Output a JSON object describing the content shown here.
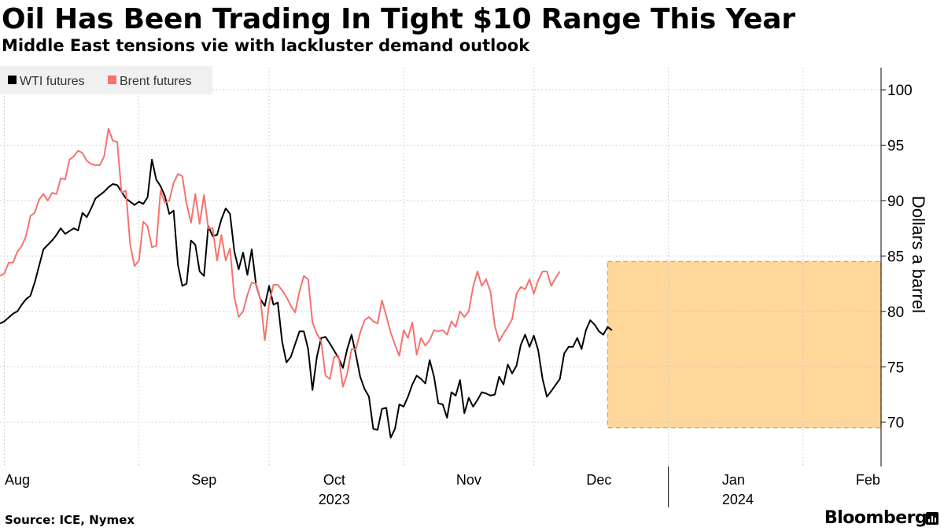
{
  "header": {
    "title": "Oil Has Been Trading In Tight $10 Range This Year",
    "subtitle": "Middle East tensions vie with lackluster demand outlook"
  },
  "footer": {
    "source": "Source: ICE, Nymex",
    "brand": "Bloomberg"
  },
  "chart_data": {
    "type": "line",
    "title": "Oil Has Been Trading In Tight $10 Range This Year",
    "subtitle": "Middle East tensions vie with lackluster demand outlook",
    "ylabel": "Dollars a barrel",
    "xlabel": "",
    "ylim": [
      66,
      102
    ],
    "yticks": [
      70,
      75,
      80,
      85,
      90,
      95,
      100
    ],
    "xlim_days": [
      0,
      203
    ],
    "x_unit": "days since 2023-07-31",
    "x_month_ticks": [
      {
        "label": "Aug",
        "day": 1
      },
      {
        "label": "Sep",
        "day": 32
      },
      {
        "label": "Oct",
        "day": 62
      },
      {
        "label": "Nov",
        "day": 93
      },
      {
        "label": "Dec",
        "day": 123
      },
      {
        "label": "Jan",
        "day": 154
      },
      {
        "label": "Feb",
        "day": 185
      }
    ],
    "x_month_bounds": [
      1,
      32,
      62,
      93,
      123,
      154,
      185
    ],
    "x_year_labels": [
      {
        "label": "2023",
        "day": 77
      },
      {
        "label": "2024",
        "day": 170
      }
    ],
    "x_year_boundary_day": 154,
    "highlight": {
      "x_start_day": 140,
      "x_end_day": 203,
      "y_min": 69.5,
      "y_max": 84.5,
      "color": "#ffd79b",
      "border": "#f5a623"
    },
    "legend_position": "top-left",
    "grid": true,
    "series": [
      {
        "name": "WTI futures",
        "color": "#000000",
        "points": [
          [
            0,
            78.9
          ],
          [
            1,
            79.1
          ],
          [
            3,
            79.8
          ],
          [
            4,
            80.0
          ],
          [
            5,
            80.6
          ],
          [
            6,
            81.1
          ],
          [
            7,
            81.4
          ],
          [
            8,
            82.6
          ],
          [
            10,
            85.6
          ],
          [
            11,
            86.0
          ],
          [
            12,
            86.4
          ],
          [
            13,
            86.9
          ],
          [
            14,
            87.5
          ],
          [
            15,
            87.0
          ],
          [
            17,
            87.5
          ],
          [
            18,
            87.3
          ],
          [
            19,
            88.9
          ],
          [
            20,
            88.5
          ],
          [
            21,
            89.3
          ],
          [
            22,
            90.2
          ],
          [
            24,
            90.8
          ],
          [
            25,
            91.2
          ],
          [
            26,
            91.5
          ],
          [
            27,
            91.4
          ],
          [
            28,
            90.8
          ],
          [
            29,
            90.2
          ],
          [
            31,
            89.6
          ],
          [
            32,
            89.9
          ],
          [
            33,
            89.7
          ],
          [
            34,
            90.3
          ],
          [
            35,
            93.7
          ],
          [
            36,
            91.9
          ],
          [
            37,
            91.3
          ],
          [
            38,
            90.4
          ],
          [
            39,
            88.8
          ],
          [
            40,
            89.1
          ],
          [
            41,
            84.2
          ],
          [
            42,
            82.3
          ],
          [
            43,
            82.5
          ],
          [
            44,
            86.4
          ],
          [
            45,
            86.0
          ],
          [
            46,
            83.6
          ],
          [
            47,
            83.2
          ],
          [
            48,
            87.7
          ],
          [
            49,
            86.8
          ],
          [
            50,
            86.9
          ],
          [
            51,
            88.3
          ],
          [
            52,
            89.3
          ],
          [
            53,
            88.8
          ],
          [
            54,
            85.4
          ],
          [
            55,
            83.8
          ],
          [
            56,
            85.3
          ],
          [
            57,
            83.3
          ],
          [
            58,
            85.6
          ],
          [
            59,
            82.4
          ],
          [
            60,
            81.1
          ],
          [
            61,
            80.5
          ],
          [
            62,
            82.3
          ],
          [
            63,
            80.6
          ],
          [
            64,
            80.8
          ],
          [
            65,
            77.3
          ],
          [
            66,
            75.4
          ],
          [
            67,
            75.9
          ],
          [
            69,
            78.2
          ],
          [
            70,
            78.2
          ],
          [
            71,
            76.6
          ],
          [
            72,
            72.9
          ],
          [
            73,
            75.9
          ],
          [
            74,
            77.6
          ],
          [
            75,
            77.7
          ],
          [
            76,
            77.1
          ],
          [
            78,
            75.8
          ],
          [
            79,
            74.9
          ],
          [
            80,
            76.6
          ],
          [
            81,
            77.9
          ],
          [
            82,
            76.1
          ],
          [
            83,
            74.1
          ],
          [
            84,
            73.0
          ],
          [
            85,
            72.3
          ],
          [
            86,
            69.4
          ],
          [
            87,
            69.3
          ],
          [
            88,
            71.2
          ],
          [
            89,
            71.3
          ],
          [
            90,
            68.6
          ],
          [
            91,
            69.4
          ],
          [
            92,
            71.6
          ],
          [
            93,
            71.4
          ],
          [
            94,
            72.3
          ],
          [
            95,
            73.4
          ],
          [
            96,
            74.2
          ],
          [
            97,
            73.9
          ],
          [
            98,
            73.5
          ],
          [
            99,
            75.6
          ],
          [
            100,
            74.1
          ],
          [
            101,
            71.7
          ],
          [
            102,
            71.6
          ],
          [
            103,
            70.4
          ],
          [
            104,
            72.7
          ],
          [
            105,
            72.4
          ],
          [
            106,
            73.8
          ],
          [
            107,
            70.8
          ],
          [
            108,
            72.2
          ],
          [
            109,
            71.4
          ],
          [
            110,
            72.0
          ],
          [
            111,
            72.7
          ],
          [
            112,
            72.6
          ],
          [
            113,
            72.4
          ],
          [
            114,
            72.5
          ],
          [
            115,
            74.1
          ],
          [
            116,
            73.4
          ],
          [
            117,
            75.2
          ],
          [
            118,
            74.4
          ],
          [
            119,
            75.1
          ],
          [
            120,
            77.0
          ],
          [
            121,
            77.9
          ],
          [
            122,
            76.8
          ],
          [
            123,
            77.8
          ],
          [
            124,
            76.5
          ],
          [
            125,
            73.9
          ],
          [
            126,
            72.3
          ],
          [
            127,
            72.8
          ],
          [
            129,
            73.9
          ],
          [
            130,
            76.2
          ],
          [
            131,
            76.8
          ],
          [
            132,
            76.8
          ],
          [
            133,
            77.6
          ],
          [
            134,
            76.6
          ],
          [
            135,
            78.3
          ],
          [
            136,
            79.2
          ],
          [
            137,
            78.8
          ],
          [
            138,
            78.2
          ],
          [
            139,
            77.9
          ],
          [
            140,
            78.6
          ],
          [
            141,
            78.3
          ]
        ]
      },
      {
        "name": "Brent futures",
        "color": "#f5736e",
        "points": [
          [
            0,
            83.2
          ],
          [
            1,
            83.4
          ],
          [
            2,
            84.4
          ],
          [
            3,
            84.4
          ],
          [
            4,
            85.4
          ],
          [
            5,
            85.9
          ],
          [
            6,
            86.8
          ],
          [
            7,
            88.6
          ],
          [
            8,
            88.9
          ],
          [
            9,
            90.1
          ],
          [
            10,
            90.6
          ],
          [
            11,
            90.0
          ],
          [
            12,
            90.7
          ],
          [
            13,
            90.6
          ],
          [
            14,
            92.0
          ],
          [
            15,
            91.9
          ],
          [
            16,
            93.7
          ],
          [
            17,
            94.0
          ],
          [
            18,
            94.5
          ],
          [
            19,
            94.3
          ],
          [
            20,
            93.6
          ],
          [
            21,
            93.3
          ],
          [
            22,
            93.2
          ],
          [
            23,
            93.2
          ],
          [
            24,
            94.0
          ],
          [
            25,
            96.5
          ],
          [
            26,
            95.4
          ],
          [
            27,
            95.3
          ],
          [
            28,
            90.7
          ],
          [
            29,
            90.9
          ],
          [
            30,
            86.0
          ],
          [
            31,
            84.1
          ],
          [
            32,
            84.6
          ],
          [
            33,
            88.1
          ],
          [
            34,
            87.7
          ],
          [
            35,
            85.8
          ],
          [
            36,
            85.9
          ],
          [
            37,
            90.9
          ],
          [
            38,
            89.8
          ],
          [
            39,
            90.0
          ],
          [
            40,
            91.6
          ],
          [
            41,
            92.4
          ],
          [
            42,
            92.2
          ],
          [
            43,
            89.7
          ],
          [
            44,
            88.0
          ],
          [
            45,
            90.6
          ],
          [
            46,
            87.9
          ],
          [
            47,
            90.5
          ],
          [
            48,
            87.5
          ],
          [
            49,
            87.5
          ],
          [
            50,
            84.6
          ],
          [
            51,
            86.9
          ],
          [
            52,
            84.6
          ],
          [
            53,
            85.7
          ],
          [
            54,
            81.3
          ],
          [
            55,
            79.5
          ],
          [
            56,
            80.0
          ],
          [
            57,
            81.5
          ],
          [
            58,
            82.6
          ],
          [
            59,
            82.5
          ],
          [
            60,
            81.1
          ],
          [
            61,
            77.4
          ],
          [
            62,
            80.7
          ],
          [
            63,
            82.4
          ],
          [
            64,
            82.4
          ],
          [
            65,
            81.9
          ],
          [
            66,
            81.3
          ],
          [
            67,
            80.5
          ],
          [
            68,
            79.9
          ],
          [
            69,
            81.8
          ],
          [
            70,
            83.2
          ],
          [
            71,
            82.9
          ],
          [
            72,
            79.0
          ],
          [
            73,
            78.0
          ],
          [
            74,
            77.3
          ],
          [
            75,
            74.2
          ],
          [
            76,
            73.9
          ],
          [
            77,
            75.9
          ],
          [
            78,
            76.0
          ],
          [
            79,
            73.2
          ],
          [
            80,
            74.4
          ],
          [
            81,
            76.6
          ],
          [
            82,
            76.6
          ],
          [
            83,
            78.1
          ],
          [
            84,
            79.2
          ],
          [
            85,
            79.5
          ],
          [
            86,
            79.1
          ],
          [
            87,
            78.9
          ],
          [
            88,
            81.0
          ],
          [
            89,
            79.6
          ],
          [
            90,
            78.1
          ],
          [
            91,
            77.0
          ],
          [
            92,
            76.0
          ],
          [
            93,
            78.3
          ],
          [
            94,
            77.6
          ],
          [
            95,
            79.0
          ],
          [
            96,
            76.1
          ],
          [
            97,
            77.6
          ],
          [
            98,
            76.9
          ],
          [
            99,
            77.4
          ],
          [
            100,
            78.3
          ],
          [
            101,
            78.2
          ],
          [
            102,
            78.3
          ],
          [
            103,
            77.9
          ],
          [
            104,
            79.1
          ],
          [
            105,
            78.6
          ],
          [
            106,
            80.0
          ],
          [
            107,
            79.5
          ],
          [
            108,
            80.0
          ],
          [
            109,
            82.2
          ],
          [
            110,
            83.6
          ],
          [
            111,
            82.3
          ],
          [
            112,
            82.9
          ],
          [
            113,
            81.8
          ],
          [
            114,
            78.7
          ],
          [
            115,
            77.3
          ],
          [
            116,
            78.0
          ],
          [
            117,
            78.6
          ],
          [
            118,
            79.3
          ],
          [
            119,
            81.6
          ],
          [
            120,
            82.2
          ],
          [
            121,
            82.0
          ],
          [
            122,
            82.9
          ],
          [
            123,
            81.6
          ],
          [
            124,
            82.8
          ],
          [
            125,
            83.6
          ],
          [
            126,
            83.6
          ],
          [
            127,
            82.3
          ],
          [
            128,
            83.0
          ],
          [
            129,
            83.6
          ]
        ]
      }
    ]
  }
}
